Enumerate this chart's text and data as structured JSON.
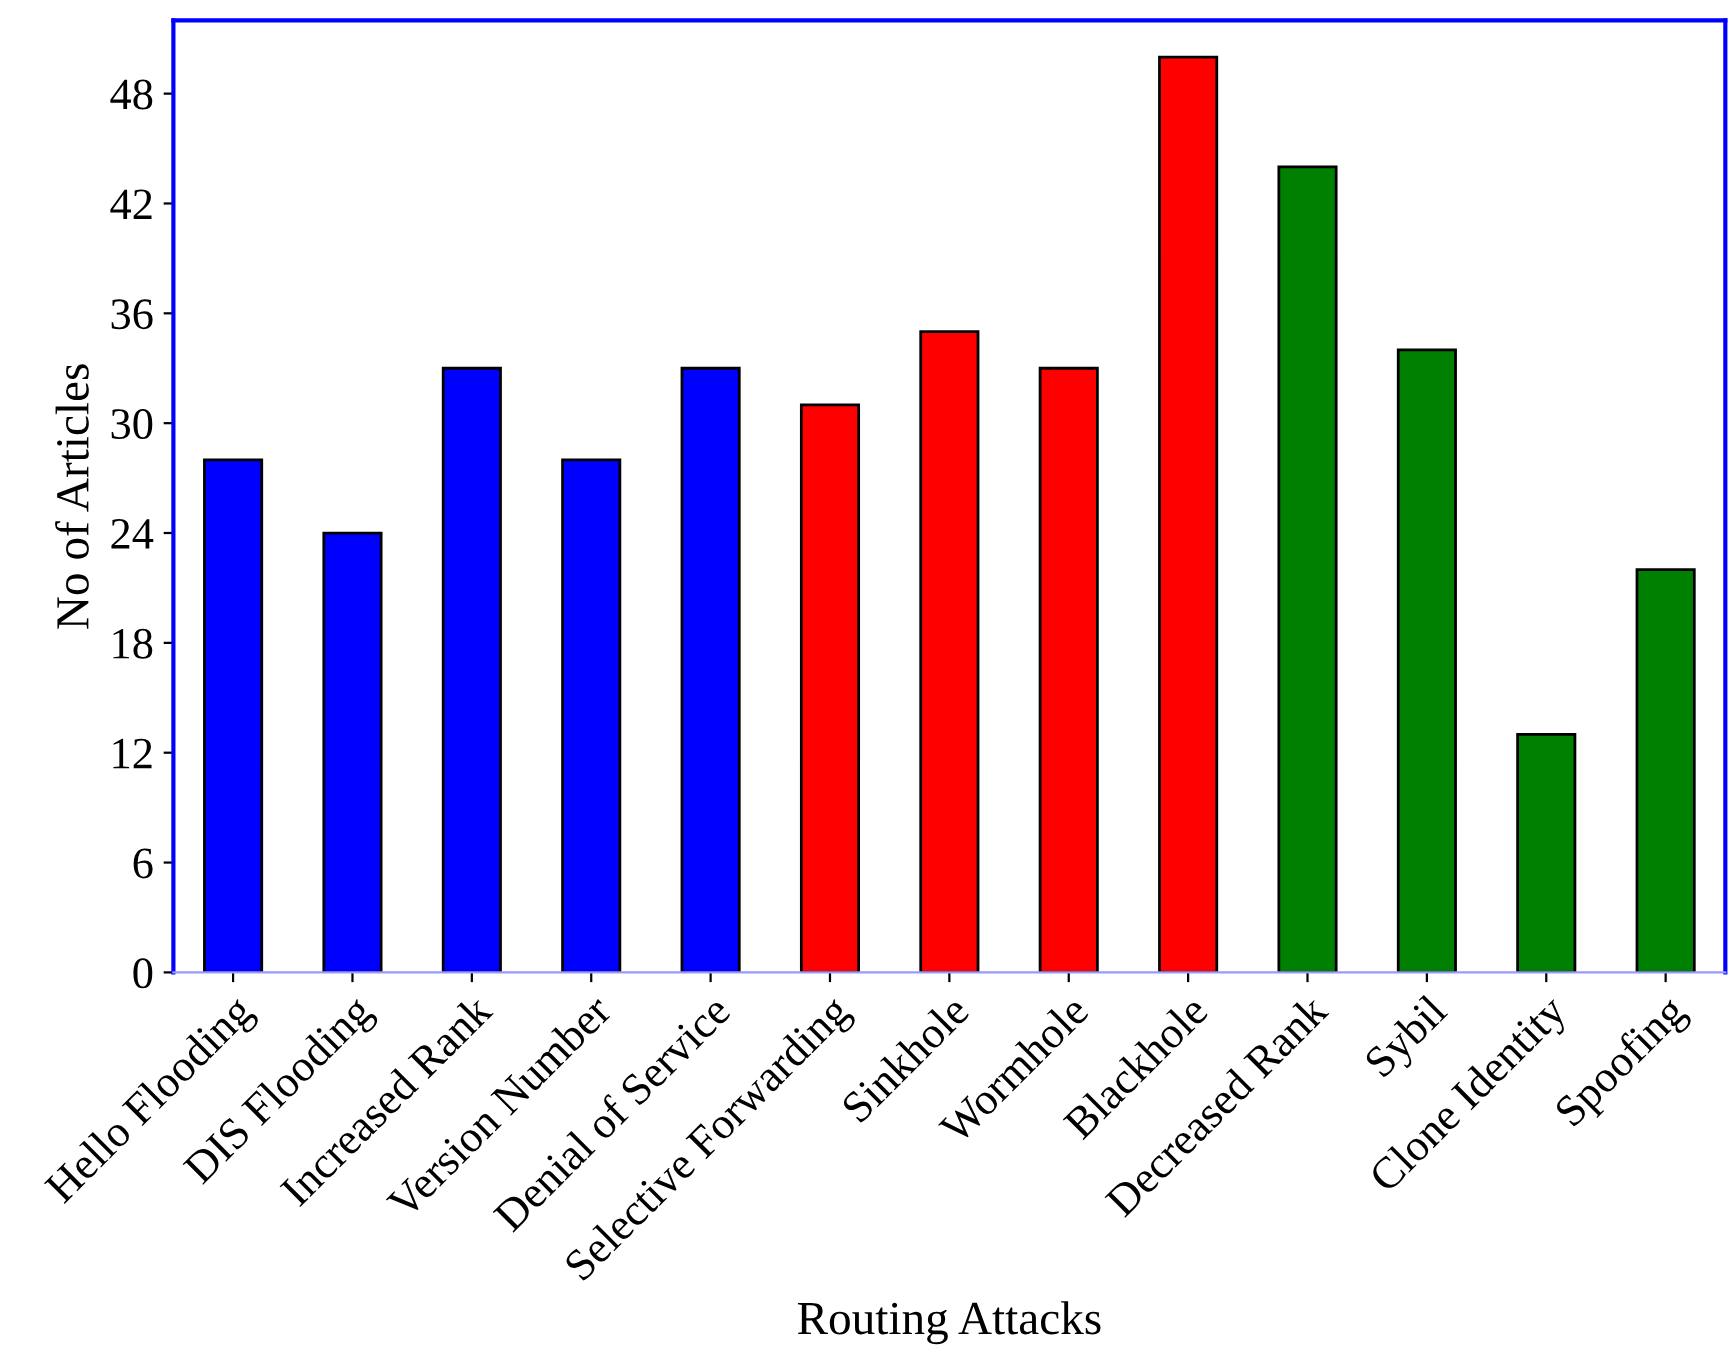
{
  "chart_data": {
    "type": "bar",
    "xlabel": "Routing Attacks",
    "ylabel": "No of Articles",
    "categories": [
      "Hello Flooding",
      "DIS Flooding",
      "Increased Rank",
      "Version Number",
      "Denial of Service",
      "Selective Forwarding",
      "Sinkhole",
      "Wormhole",
      "Blackhole",
      "Decreased Rank",
      "Sybil",
      "Clone Identity",
      "Spoofing"
    ],
    "values": [
      28,
      24,
      33,
      28,
      33,
      31,
      35,
      33,
      50,
      44,
      34,
      13,
      22
    ],
    "colors": [
      "#0000ff",
      "#0000ff",
      "#0000ff",
      "#0000ff",
      "#0000ff",
      "#ff0000",
      "#ff0000",
      "#ff0000",
      "#ff0000",
      "#008000",
      "#008000",
      "#008000",
      "#008000"
    ],
    "ylim": [
      0,
      52
    ],
    "yticks": [
      0,
      6,
      12,
      18,
      24,
      30,
      36,
      42,
      48
    ],
    "grid": false,
    "legend": false
  }
}
